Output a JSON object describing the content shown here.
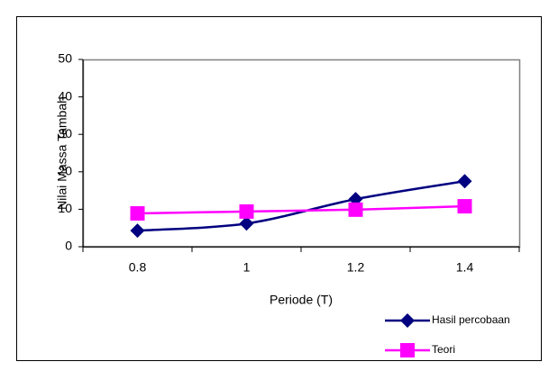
{
  "chart_data": {
    "type": "line",
    "categories": [
      "0.8",
      "1",
      "1.2",
      "1.4"
    ],
    "series": [
      {
        "name": "Hasil percobaan",
        "color": "#000080",
        "marker": "diamond",
        "values": [
          4.3,
          6.2,
          12.7,
          17.5
        ]
      },
      {
        "name": "Teori",
        "color": "#ff00ff",
        "marker": "square",
        "values": [
          8.9,
          9.4,
          9.9,
          10.8
        ]
      }
    ],
    "x_label": "Periode (T)",
    "y_label": "Nilai Massa Tambah",
    "ylim": [
      0,
      50
    ],
    "yticks": [
      0,
      10,
      20,
      30,
      40,
      50
    ],
    "smooth": true,
    "legend": "bottom-right",
    "grid": false
  }
}
